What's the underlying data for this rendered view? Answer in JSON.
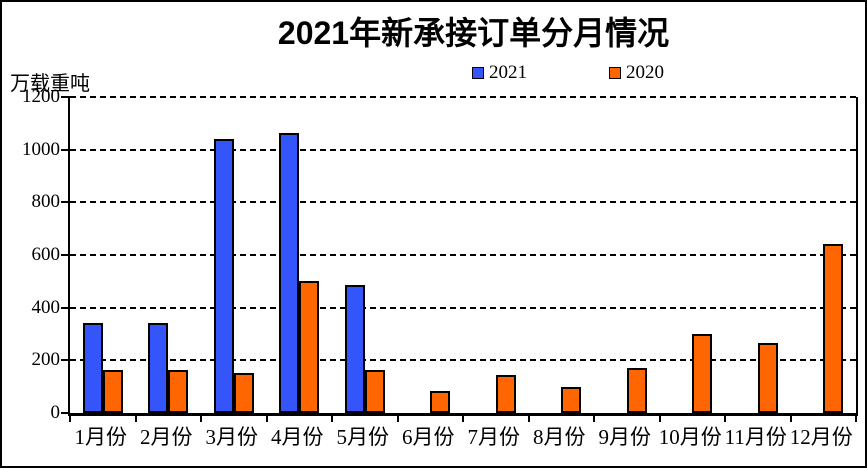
{
  "window": {
    "background": "#FFFFFF",
    "frame_color": "#000000"
  },
  "chart_data": {
    "type": "bar",
    "title": "2021年新承接订单分月情况",
    "xlabel": "",
    "ylabel": "万载重吨",
    "categories": [
      "1月份",
      "2月份",
      "3月份",
      "4月份",
      "5月份",
      "6月份",
      "7月份",
      "8月份",
      "9月份",
      "10月份",
      "11月份",
      "12月份"
    ],
    "series": [
      {
        "name": "2021",
        "color": "#3355FA",
        "values": [
          340,
          340,
          1040,
          1065,
          485,
          null,
          null,
          null,
          null,
          null,
          null,
          null
        ]
      },
      {
        "name": "2020",
        "color": "#FF6600",
        "values": [
          165,
          165,
          150,
          500,
          165,
          85,
          145,
          100,
          170,
          300,
          265,
          640
        ]
      }
    ],
    "ylim": [
      0,
      1200
    ],
    "yticks": [
      0,
      200,
      400,
      600,
      800,
      1000,
      1200
    ],
    "grid": "horizontal-dashed",
    "legend_position": "top-center",
    "bar_border_color": "#000000",
    "text_color": "#000000"
  }
}
